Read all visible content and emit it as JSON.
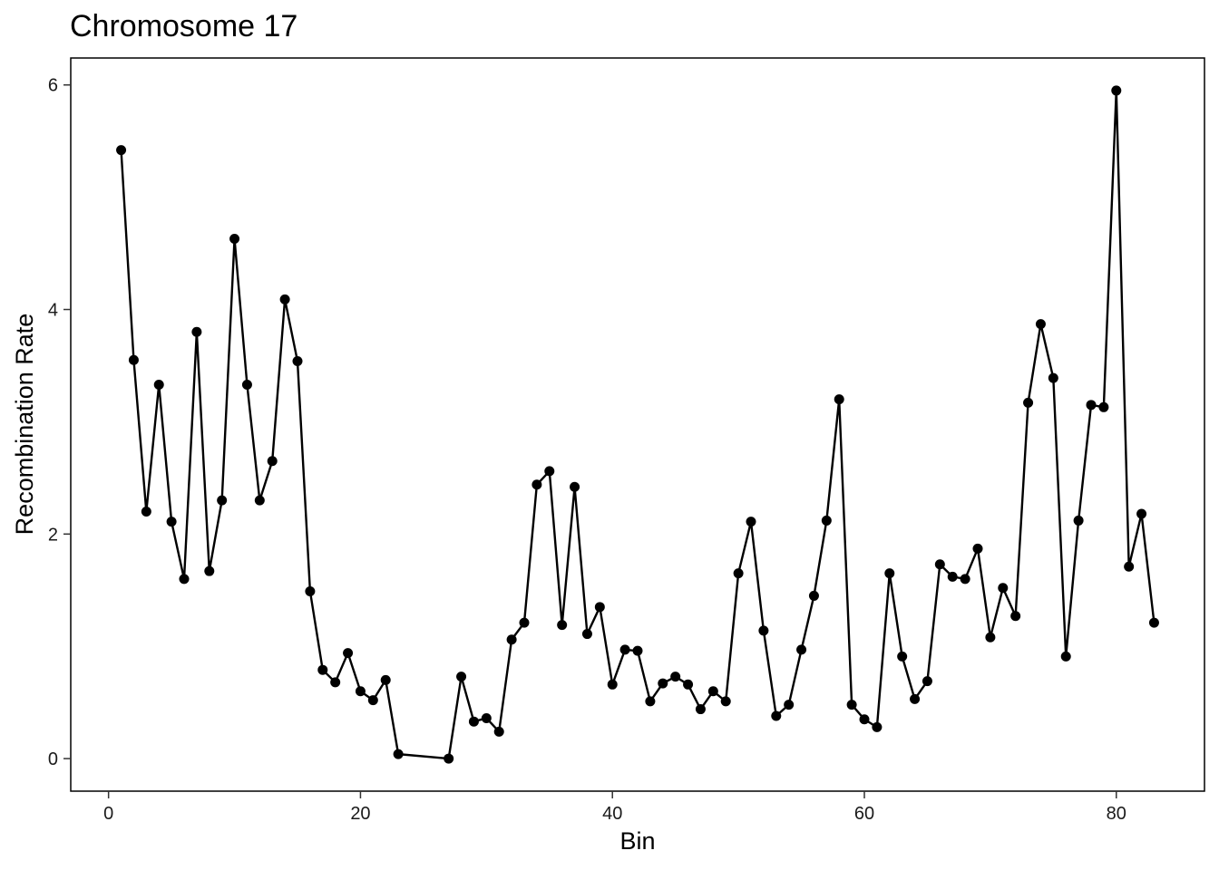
{
  "chart_data": {
    "type": "line",
    "title": "Chromosome 17",
    "xlabel": "Bin",
    "ylabel": "Recombination Rate",
    "xlim": [
      -3,
      87
    ],
    "ylim": [
      -0.29,
      6.24
    ],
    "xticks": [
      0,
      20,
      40,
      60,
      80
    ],
    "yticks": [
      0,
      2,
      4,
      6
    ],
    "grid": false,
    "legend": "none",
    "line_color": "#000000",
    "marker_color": "#000000",
    "series": [
      {
        "x": [
          1,
          2,
          3,
          4,
          5,
          6,
          7,
          8,
          9,
          10,
          11,
          12,
          13,
          14,
          15,
          16,
          17,
          18,
          19,
          20,
          21,
          22,
          23,
          27,
          28,
          29,
          30,
          31,
          32,
          33,
          34,
          35,
          36,
          37,
          38,
          39,
          40,
          41,
          42,
          43,
          44,
          45,
          46,
          47,
          48,
          49,
          50,
          51,
          52,
          53,
          54,
          55,
          56,
          57,
          58,
          59,
          60,
          61,
          62,
          63,
          64,
          65,
          66,
          67,
          68,
          69,
          70,
          71,
          72,
          73,
          74,
          75,
          76,
          77,
          78,
          79,
          80,
          81,
          82,
          83
        ],
        "y": [
          5.42,
          3.55,
          2.2,
          3.33,
          2.11,
          1.6,
          3.8,
          1.67,
          2.3,
          4.63,
          3.33,
          2.3,
          2.65,
          4.09,
          3.54,
          1.49,
          0.79,
          0.68,
          0.94,
          0.6,
          0.52,
          0.7,
          0.04,
          0.0,
          0.73,
          0.33,
          0.36,
          0.24,
          1.06,
          1.21,
          2.44,
          2.56,
          1.19,
          2.42,
          1.11,
          1.35,
          0.66,
          0.97,
          0.96,
          0.51,
          0.67,
          0.73,
          0.66,
          0.44,
          0.6,
          0.51,
          1.65,
          2.11,
          1.14,
          0.38,
          0.48,
          0.97,
          1.45,
          2.12,
          3.2,
          0.48,
          0.35,
          0.28,
          1.65,
          0.91,
          0.53,
          0.69,
          1.73,
          1.62,
          1.6,
          1.87,
          1.08,
          1.52,
          1.27,
          3.17,
          3.87,
          3.39,
          0.91,
          2.12,
          3.15,
          3.13,
          5.95,
          1.71,
          2.18,
          1.21
        ]
      }
    ]
  }
}
